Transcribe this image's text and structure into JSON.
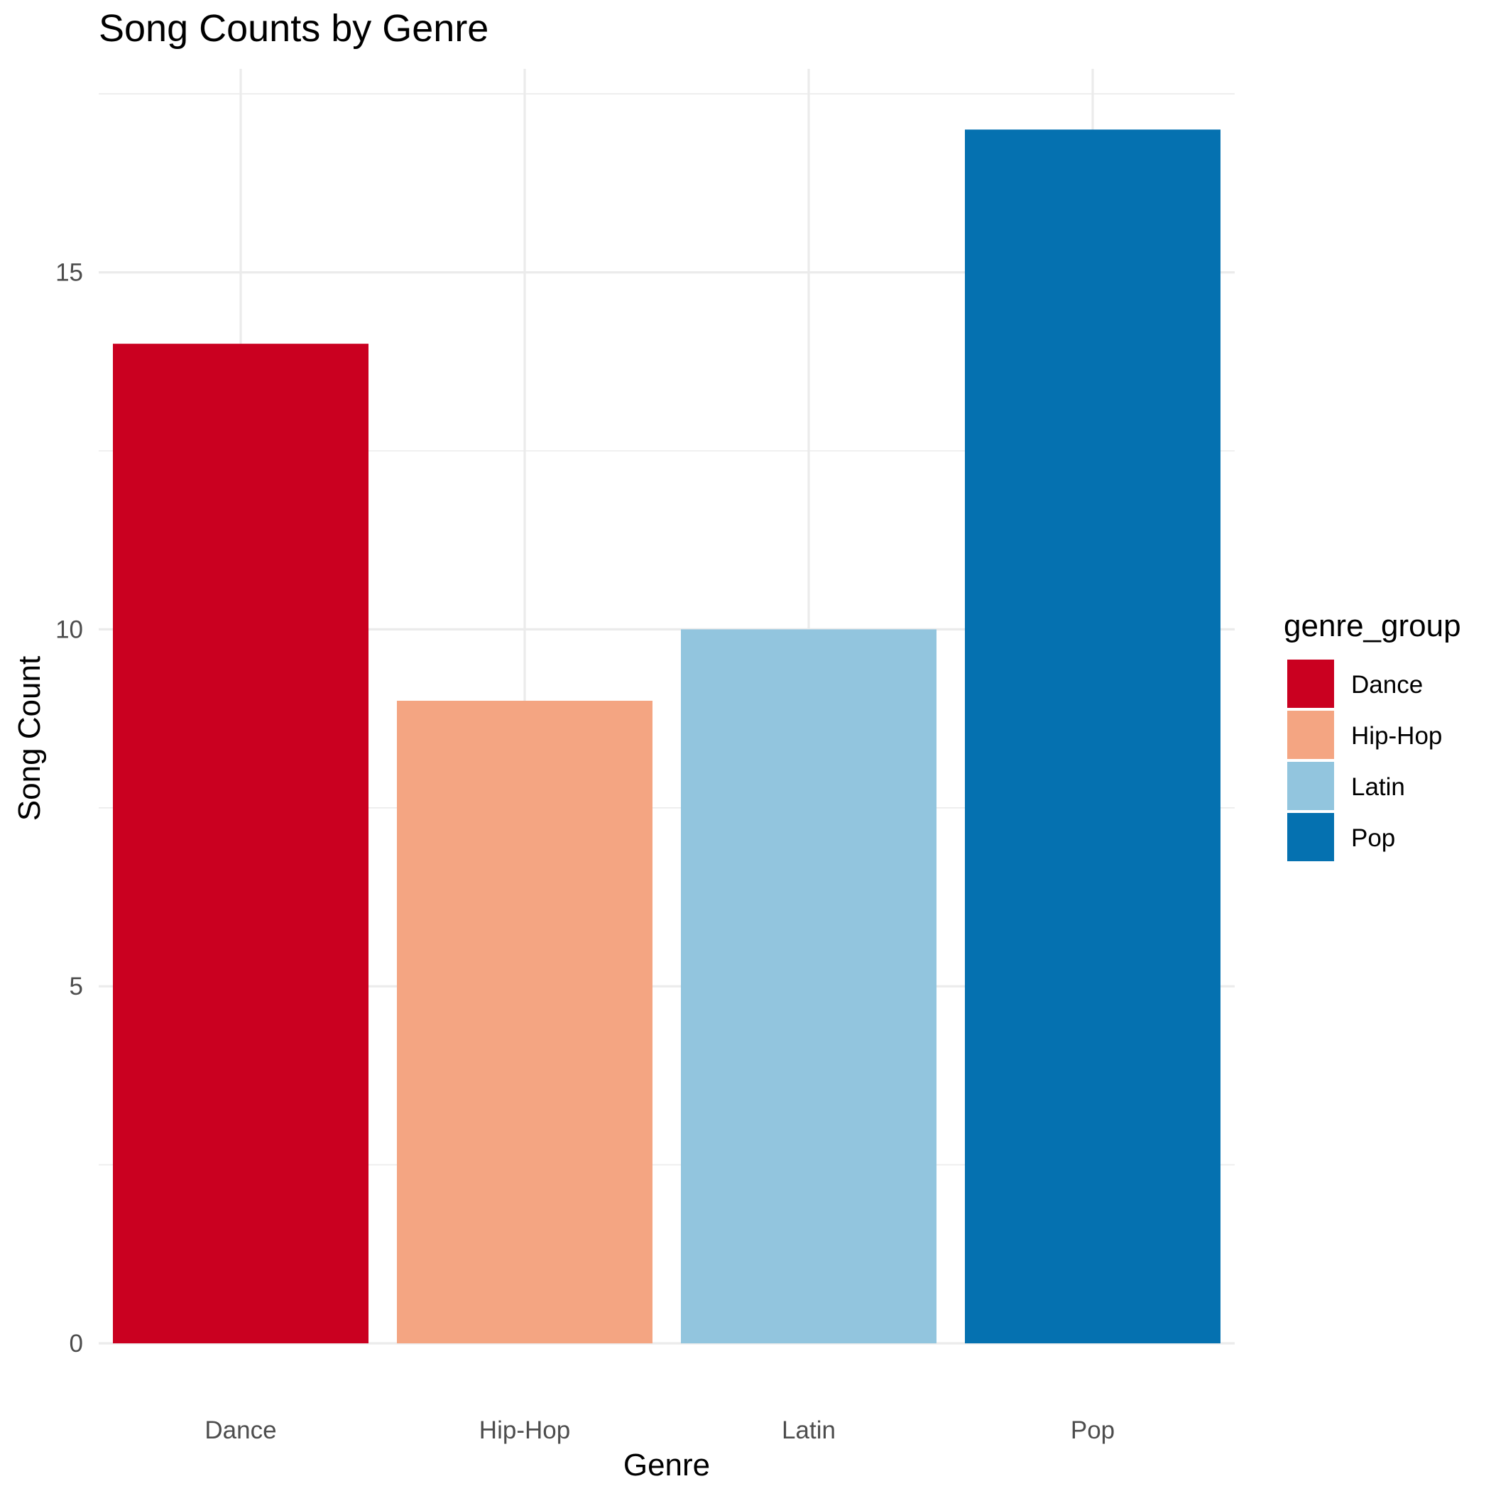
{
  "chart_data": {
    "type": "bar",
    "title": "Song Counts by Genre",
    "xlabel": "Genre",
    "ylabel": "Song Count",
    "categories": [
      "Dance",
      "Hip-Hop",
      "Latin",
      "Pop"
    ],
    "values": [
      14,
      9,
      10,
      17
    ],
    "colors": [
      "#ca0020",
      "#f4a582",
      "#92c5de",
      "#0571b0"
    ],
    "ylim": [
      0,
      17.85
    ],
    "yticks": [
      0,
      5,
      10,
      15
    ],
    "grid": true,
    "legend": {
      "title": "genre_group",
      "placement": "right",
      "entries": [
        "Dance",
        "Hip-Hop",
        "Latin",
        "Pop"
      ]
    }
  }
}
